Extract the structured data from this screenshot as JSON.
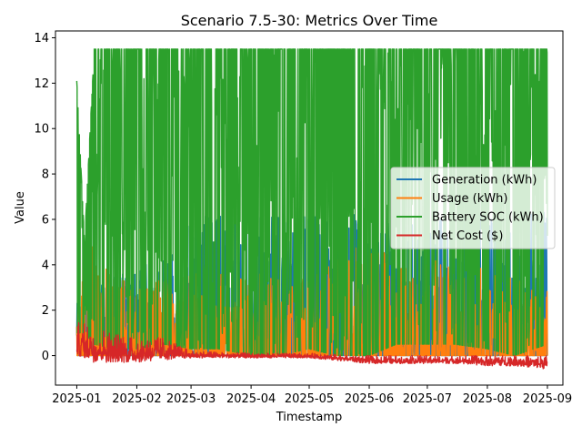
{
  "chart_data": {
    "type": "line",
    "title": "Scenario 7.5-30: Metrics Over Time",
    "xlabel": "Timestamp",
    "ylabel": "Value",
    "x_range": [
      "2024-12-21",
      "2025-09-09"
    ],
    "ylim": [
      -1.3,
      14.3
    ],
    "x_ticks": [
      "2025-01",
      "2025-02",
      "2025-03",
      "2025-04",
      "2025-05",
      "2025-06",
      "2025-07",
      "2025-08",
      "2025-09"
    ],
    "x_tick_dates": [
      "2025-01-01",
      "2025-02-01",
      "2025-03-01",
      "2025-04-01",
      "2025-05-01",
      "2025-06-01",
      "2025-07-01",
      "2025-08-01",
      "2025-09-01"
    ],
    "y_ticks": [
      0,
      2,
      4,
      6,
      8,
      10,
      12,
      14
    ],
    "grid": false,
    "legend_position": "center-right",
    "series": [
      {
        "name": "Generation (kWh)",
        "color": "#1f77b4",
        "x": [
          "2025-01-01",
          "2025-01-20",
          "2025-02-10",
          "2025-02-20",
          "2025-03-01",
          "2025-03-15",
          "2025-04-01",
          "2025-04-15",
          "2025-05-01",
          "2025-05-15",
          "2025-06-01",
          "2025-06-15",
          "2025-07-01",
          "2025-07-15",
          "2025-08-01",
          "2025-08-15",
          "2025-09-01"
        ],
        "min": [
          0,
          0,
          0,
          0,
          0,
          0,
          0,
          0,
          0,
          0,
          0,
          0,
          0,
          0,
          0,
          0,
          0
        ],
        "max": [
          2.3,
          3.5,
          4.2,
          4.6,
          6.3,
          6.3,
          6.3,
          6.3,
          6.3,
          6.3,
          6.3,
          6.3,
          6.3,
          6.3,
          6.3,
          6.3,
          6.3
        ]
      },
      {
        "name": "Usage (kWh)",
        "color": "#ff7f0e",
        "x": [
          "2025-01-01",
          "2025-01-05",
          "2025-01-15",
          "2025-02-01",
          "2025-02-15",
          "2025-03-01",
          "2025-03-15",
          "2025-04-01",
          "2025-04-15",
          "2025-05-01",
          "2025-05-15",
          "2025-06-01",
          "2025-06-15",
          "2025-07-01",
          "2025-07-15",
          "2025-08-01",
          "2025-08-15",
          "2025-09-01"
        ],
        "min": [
          0,
          0,
          0,
          0,
          0,
          0,
          0,
          0,
          0,
          0,
          0,
          0,
          0,
          0,
          0,
          0,
          0,
          0
        ],
        "max": [
          1.8,
          5.8,
          3.9,
          3.0,
          3.5,
          3.6,
          3.6,
          3.5,
          3.8,
          3.5,
          4.2,
          5.4,
          4.0,
          4.3,
          4.0,
          3.8,
          3.5,
          3.0
        ]
      },
      {
        "name": "Battery SOC (kWh)",
        "color": "#2ca02c",
        "x": [
          "2025-01-01",
          "2025-01-05",
          "2025-01-10",
          "2025-01-20",
          "2025-02-01",
          "2025-02-15",
          "2025-03-01",
          "2025-03-15",
          "2025-04-01",
          "2025-04-15",
          "2025-05-01",
          "2025-05-15",
          "2025-06-01",
          "2025-06-15",
          "2025-07-01",
          "2025-07-15",
          "2025-08-01",
          "2025-08-15",
          "2025-09-01"
        ],
        "min": [
          1.0,
          1.0,
          0.5,
          0.3,
          0.3,
          0.5,
          0.3,
          0.3,
          0.0,
          0.0,
          0.3,
          0.0,
          0.0,
          0.5,
          0.5,
          0.5,
          0.3,
          0.0,
          0.5
        ],
        "max": [
          12.1,
          5.0,
          13.5,
          13.5,
          13.5,
          13.5,
          13.5,
          13.5,
          13.5,
          13.5,
          13.5,
          13.5,
          13.5,
          13.5,
          13.5,
          13.5,
          13.5,
          13.5,
          13.5
        ]
      },
      {
        "name": "Net Cost ($)",
        "color": "#d62728",
        "x": [
          "2025-01-01",
          "2025-01-10",
          "2025-01-20",
          "2025-02-01",
          "2025-02-15",
          "2025-03-01",
          "2025-04-01",
          "2025-05-01",
          "2025-06-01",
          "2025-06-15",
          "2025-07-01",
          "2025-07-15",
          "2025-08-01",
          "2025-08-15",
          "2025-09-01"
        ],
        "min": [
          0.0,
          -0.3,
          -0.3,
          -0.3,
          -0.2,
          -0.1,
          -0.1,
          -0.1,
          -0.35,
          -0.35,
          -0.35,
          -0.35,
          -0.45,
          -0.45,
          -0.6
        ],
        "max": [
          1.5,
          1.3,
          1.0,
          0.8,
          0.8,
          0.2,
          0.1,
          0.1,
          0.0,
          0.0,
          0.0,
          0.0,
          0.0,
          0.0,
          0.0
        ]
      }
    ]
  }
}
